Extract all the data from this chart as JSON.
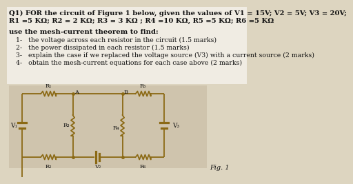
{
  "title_line1": "Q1) FOR the circuit of Figure 1 below, given the values of V1 = 15V; V2 = 5V; V3 = 20V;",
  "title_line2": "R1 =5 KΩ; R2 = 2 KΩ; R3 = 3 KΩ ; R4 =10 KΩ, R5 =5 KΩ; R6 =5 KΩ",
  "bold_text": "use the mesh-current theorem to find:",
  "items": [
    "1-   the voltage across each resistor in the circuit (1.5 marks)",
    "2-   the power dissipated in each resistor (1.5 marks)",
    "3-   explain the case if we replaced the voltage source (V3) with a current source (2 marks)",
    "4-   obtain the mesh-current equations for each case above (2 marks)"
  ],
  "fig_label": "Fig. 1",
  "bg_color": "#ddd5c0",
  "line_color": "#8b6914",
  "text_color": "#111111",
  "circuit_bg": "#cfc4ad"
}
